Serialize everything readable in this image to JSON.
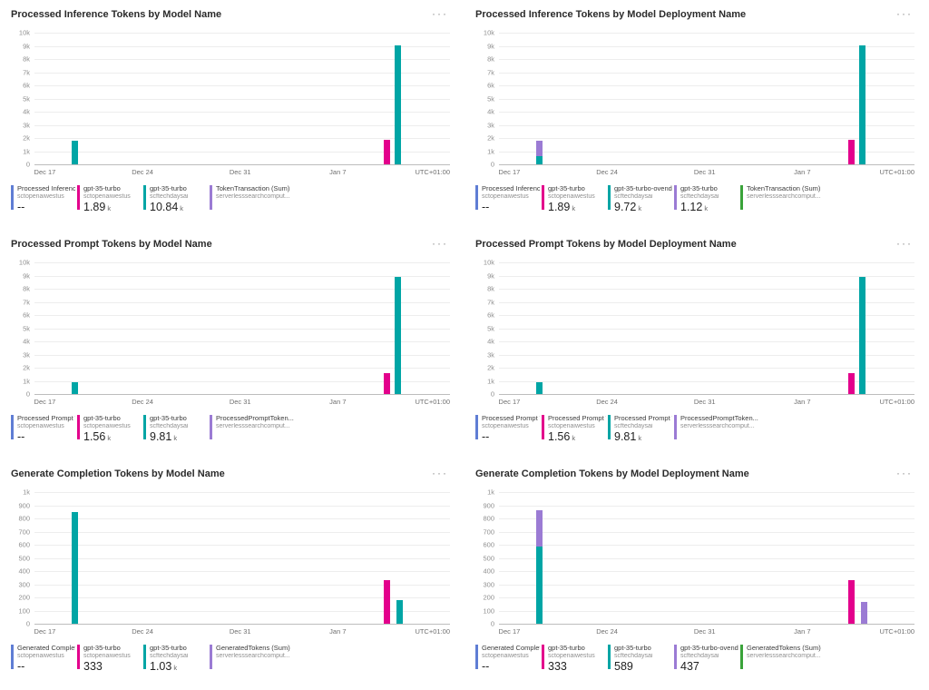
{
  "menu_icon": "···",
  "colors": {
    "blue": "#5f7dd4",
    "pink": "#e3008c",
    "teal": "#00a5a5",
    "purple": "#9b7bd4",
    "green": "#3aa33a"
  },
  "chart_data": [
    {
      "type": "bar",
      "title": "Processed Inference Tokens by Model Name",
      "timezone": "UTC+01:00",
      "ymax": 10000,
      "ylim": [
        0,
        10000
      ],
      "y_ticks": [
        "10k",
        "9k",
        "8k",
        "7k",
        "6k",
        "5k",
        "4k",
        "3k",
        "2k",
        "1k",
        "0"
      ],
      "x_ticks": [
        {
          "label": "Dec 17",
          "f": 0.025
        },
        {
          "label": "Dec 24",
          "f": 0.26
        },
        {
          "label": "Dec 31",
          "f": 0.495
        },
        {
          "label": "Jan 7",
          "f": 0.73
        }
      ],
      "bars": [
        {
          "f": 0.089,
          "segments": [
            {
              "color": "teal",
              "value": 1800
            }
          ]
        },
        {
          "f": 0.84,
          "segments": [
            {
              "color": "pink",
              "value": 1890
            }
          ]
        },
        {
          "f": 0.866,
          "segments": [
            {
              "color": "teal",
              "value": 9040
            }
          ]
        }
      ],
      "legend": [
        {
          "color": "blue",
          "name": "Processed Inference ...",
          "sub": "sctopenaiwestus",
          "value": "--",
          "unit": ""
        },
        {
          "color": "pink",
          "name": "gpt-35-turbo",
          "sub": "sctopenaiwestus",
          "value": "1.89",
          "unit": "k"
        },
        {
          "color": "teal",
          "name": "gpt-35-turbo",
          "sub": "scftechdaysai",
          "value": "10.84",
          "unit": "k"
        },
        {
          "color": "purple",
          "name": "TokenTransaction (Sum)",
          "sub": "serverlesssearchcomput...",
          "value": "",
          "unit": ""
        }
      ]
    },
    {
      "type": "bar",
      "title": "Processed Inference Tokens by Model Deployment Name",
      "timezone": "UTC+01:00",
      "ymax": 10000,
      "ylim": [
        0,
        10000
      ],
      "y_ticks": [
        "10k",
        "9k",
        "8k",
        "7k",
        "6k",
        "5k",
        "4k",
        "3k",
        "2k",
        "1k",
        "0"
      ],
      "x_ticks": [
        {
          "label": "Dec 17",
          "f": 0.025
        },
        {
          "label": "Dec 24",
          "f": 0.26
        },
        {
          "label": "Dec 31",
          "f": 0.495
        },
        {
          "label": "Jan 7",
          "f": 0.73
        }
      ],
      "bars": [
        {
          "f": 0.089,
          "segments": [
            {
              "color": "teal",
              "value": 650
            },
            {
              "color": "purple",
              "value": 1120
            }
          ]
        },
        {
          "f": 0.84,
          "segments": [
            {
              "color": "pink",
              "value": 1890
            }
          ]
        },
        {
          "f": 0.866,
          "segments": [
            {
              "color": "teal",
              "value": 9070
            }
          ]
        }
      ],
      "legend": [
        {
          "color": "blue",
          "name": "Processed Inference ...",
          "sub": "sctopenaiwestus",
          "value": "--",
          "unit": ""
        },
        {
          "color": "pink",
          "name": "gpt-35-turbo",
          "sub": "sctopenaiwestus",
          "value": "1.89",
          "unit": "k"
        },
        {
          "color": "teal",
          "name": "gpt-35-turbo-ovendata",
          "sub": "scftechdaysai",
          "value": "9.72",
          "unit": "k"
        },
        {
          "color": "purple",
          "name": "gpt-35-turbo",
          "sub": "scftechdaysai",
          "value": "1.12",
          "unit": "k"
        },
        {
          "color": "green",
          "name": "TokenTransaction (Sum)",
          "sub": "serverlesssearchcomput...",
          "value": "",
          "unit": ""
        }
      ]
    },
    {
      "type": "bar",
      "title": "Processed Prompt Tokens by Model Name",
      "timezone": "UTC+01:00",
      "ymax": 10000,
      "ylim": [
        0,
        10000
      ],
      "y_ticks": [
        "10k",
        "9k",
        "8k",
        "7k",
        "6k",
        "5k",
        "4k",
        "3k",
        "2k",
        "1k",
        "0"
      ],
      "x_ticks": [
        {
          "label": "Dec 17",
          "f": 0.025
        },
        {
          "label": "Dec 24",
          "f": 0.26
        },
        {
          "label": "Dec 31",
          "f": 0.495
        },
        {
          "label": "Jan 7",
          "f": 0.73
        }
      ],
      "bars": [
        {
          "f": 0.089,
          "segments": [
            {
              "color": "teal",
              "value": 900
            }
          ]
        },
        {
          "f": 0.84,
          "segments": [
            {
              "color": "pink",
              "value": 1560
            }
          ]
        },
        {
          "f": 0.866,
          "segments": [
            {
              "color": "teal",
              "value": 8910
            }
          ]
        }
      ],
      "legend": [
        {
          "color": "blue",
          "name": "Processed Prompt Tok...",
          "sub": "sctopenaiwestus",
          "value": "--",
          "unit": ""
        },
        {
          "color": "pink",
          "name": "gpt-35-turbo",
          "sub": "sctopenaiwestus",
          "value": "1.56",
          "unit": "k"
        },
        {
          "color": "teal",
          "name": "gpt-35-turbo",
          "sub": "scftechdaysai",
          "value": "9.81",
          "unit": "k"
        },
        {
          "color": "purple",
          "name": "ProcessedPromptToken...",
          "sub": "serverlesssearchcomput...",
          "value": "",
          "unit": ""
        }
      ]
    },
    {
      "type": "bar",
      "title": "Processed Prompt Tokens by Model Deployment Name",
      "timezone": "UTC+01:00",
      "ymax": 10000,
      "ylim": [
        0,
        10000
      ],
      "y_ticks": [
        "10k",
        "9k",
        "8k",
        "7k",
        "6k",
        "5k",
        "4k",
        "3k",
        "2k",
        "1k",
        "0"
      ],
      "x_ticks": [
        {
          "label": "Dec 17",
          "f": 0.025
        },
        {
          "label": "Dec 24",
          "f": 0.26
        },
        {
          "label": "Dec 31",
          "f": 0.495
        },
        {
          "label": "Jan 7",
          "f": 0.73
        }
      ],
      "bars": [
        {
          "f": 0.089,
          "segments": [
            {
              "color": "teal",
              "value": 900
            }
          ]
        },
        {
          "f": 0.84,
          "segments": [
            {
              "color": "pink",
              "value": 1560
            }
          ]
        },
        {
          "f": 0.866,
          "segments": [
            {
              "color": "teal",
              "value": 8910
            }
          ]
        }
      ],
      "legend": [
        {
          "color": "blue",
          "name": "Processed Prompt Tok...",
          "sub": "sctopenaiwestus",
          "value": "--",
          "unit": ""
        },
        {
          "color": "pink",
          "name": "Processed Prompt Tok...",
          "sub": "sctopenaiwestus",
          "value": "1.56",
          "unit": "k"
        },
        {
          "color": "teal",
          "name": "Processed Prompt Tok...",
          "sub": "scftechdaysai",
          "value": "9.81",
          "unit": "k"
        },
        {
          "color": "purple",
          "name": "ProcessedPromptToken...",
          "sub": "serverlesssearchcomput...",
          "value": "",
          "unit": ""
        }
      ]
    },
    {
      "type": "bar",
      "title": "Generate Completion Tokens by Model Name",
      "timezone": "UTC+01:00",
      "ymax": 1000,
      "ylim": [
        0,
        1000
      ],
      "y_ticks": [
        "1k",
        "900",
        "800",
        "700",
        "600",
        "500",
        "400",
        "300",
        "200",
        "100",
        "0"
      ],
      "x_ticks": [
        {
          "label": "Dec 17",
          "f": 0.025
        },
        {
          "label": "Dec 24",
          "f": 0.26
        },
        {
          "label": "Dec 31",
          "f": 0.495
        },
        {
          "label": "Jan 7",
          "f": 0.73
        }
      ],
      "bars": [
        {
          "f": 0.089,
          "segments": [
            {
              "color": "teal",
              "value": 850
            }
          ]
        },
        {
          "f": 0.84,
          "segments": [
            {
              "color": "pink",
              "value": 333
            }
          ]
        },
        {
          "f": 0.872,
          "segments": [
            {
              "color": "teal",
              "value": 180
            }
          ]
        }
      ],
      "legend": [
        {
          "color": "blue",
          "name": "Generated Completion...",
          "sub": "sctopenaiwestus",
          "value": "--",
          "unit": ""
        },
        {
          "color": "pink",
          "name": "gpt-35-turbo",
          "sub": "sctopenaiwestus",
          "value": "333",
          "unit": ""
        },
        {
          "color": "teal",
          "name": "gpt-35-turbo",
          "sub": "scftechdaysai",
          "value": "1.03",
          "unit": "k"
        },
        {
          "color": "purple",
          "name": "GeneratedTokens (Sum)",
          "sub": "serverlesssearchcomput...",
          "value": "",
          "unit": ""
        }
      ]
    },
    {
      "type": "bar",
      "title": "Generate Completion Tokens by Model Deployment Name",
      "timezone": "UTC+01:00",
      "ymax": 1000,
      "ylim": [
        0,
        1000
      ],
      "y_ticks": [
        "1k",
        "900",
        "800",
        "700",
        "600",
        "500",
        "400",
        "300",
        "200",
        "100",
        "0"
      ],
      "x_ticks": [
        {
          "label": "Dec 17",
          "f": 0.025
        },
        {
          "label": "Dec 24",
          "f": 0.26
        },
        {
          "label": "Dec 31",
          "f": 0.495
        },
        {
          "label": "Jan 7",
          "f": 0.73
        }
      ],
      "bars": [
        {
          "f": 0.089,
          "segments": [
            {
              "color": "teal",
              "value": 589
            },
            {
              "color": "purple",
              "value": 270
            }
          ]
        },
        {
          "f": 0.84,
          "segments": [
            {
              "color": "pink",
              "value": 333
            }
          ]
        },
        {
          "f": 0.872,
          "segments": [
            {
              "color": "purple",
              "value": 167
            }
          ]
        }
      ],
      "legend": [
        {
          "color": "blue",
          "name": "Generated Completion...",
          "sub": "sctopenaiwestus",
          "value": "--",
          "unit": ""
        },
        {
          "color": "pink",
          "name": "gpt-35-turbo",
          "sub": "sctopenaiwestus",
          "value": "333",
          "unit": ""
        },
        {
          "color": "teal",
          "name": "gpt-35-turbo",
          "sub": "scftechdaysai",
          "value": "589",
          "unit": ""
        },
        {
          "color": "purple",
          "name": "gpt-35-turbo-ovendata",
          "sub": "scftechdaysai",
          "value": "437",
          "unit": ""
        },
        {
          "color": "green",
          "name": "GeneratedTokens (Sum)",
          "sub": "serverlesssearchcomput...",
          "value": "",
          "unit": ""
        }
      ]
    }
  ]
}
